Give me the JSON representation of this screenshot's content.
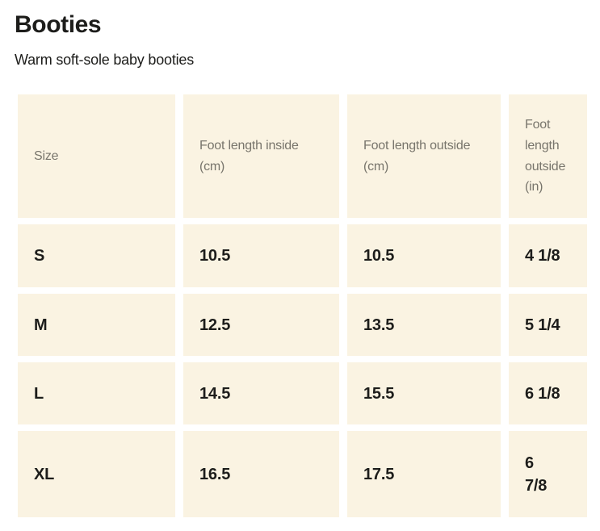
{
  "page": {
    "title": "Booties",
    "subtitle": "Warm soft-sole baby booties"
  },
  "size_chart": {
    "headers": [
      "Size",
      "Foot length inside (cm)",
      "Foot length outside (cm)",
      "Foot length outside (in)"
    ],
    "rows": [
      {
        "cells": [
          "S",
          "10.5",
          "10.5",
          "4 1/8"
        ]
      },
      {
        "cells": [
          "M",
          "12.5",
          "13.5",
          "5 1/4"
        ]
      },
      {
        "cells": [
          "L",
          "14.5",
          "15.5",
          "6 1/8"
        ]
      },
      {
        "cells": [
          "XL",
          "16.5",
          "17.5",
          "6 7/8"
        ]
      }
    ]
  },
  "colors": {
    "page_background": "#ffffff",
    "cell_background": "#faf3e2",
    "header_text": "#78756c",
    "body_text": "#1d1d1b"
  }
}
